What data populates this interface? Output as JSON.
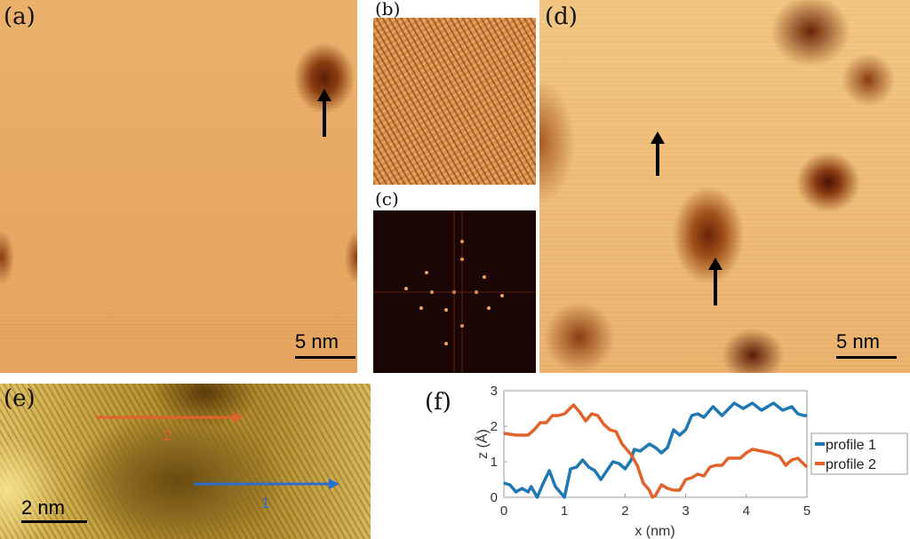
{
  "panels": {
    "a": {
      "label": "(a)",
      "scale_bar": "5 nm"
    },
    "b": {
      "label": "(b)"
    },
    "c": {
      "label": "(c)"
    },
    "d": {
      "label": "(d)",
      "scale_bar": "5 nm"
    },
    "e": {
      "label": "(e)",
      "scale_bar": "2 nm",
      "profile_arrow_labels": [
        "1",
        "2"
      ]
    },
    "f": {
      "label": "(f)"
    }
  },
  "colors": {
    "profile1": "#1f77b4",
    "profile2": "#e0622c",
    "arrow1": "#2a6ed0",
    "arrow2": "#e0622c"
  },
  "chart_data": {
    "type": "line",
    "xlabel": "x (nm)",
    "ylabel": "z (Å)",
    "xlim": [
      0,
      5
    ],
    "ylim": [
      0,
      3
    ],
    "xticks": [
      "0",
      "1",
      "2",
      "3",
      "4",
      "5"
    ],
    "yticks": [
      "0",
      "1",
      "2",
      "3"
    ],
    "legend": "right",
    "series": [
      {
        "name": "profile 1",
        "x": [
          0,
          0.1,
          0.2,
          0.3,
          0.4,
          0.45,
          0.55,
          0.65,
          0.75,
          0.85,
          1.0,
          1.1,
          1.2,
          1.3,
          1.4,
          1.5,
          1.6,
          1.7,
          1.8,
          1.9,
          2.0,
          2.1,
          2.15,
          2.25,
          2.4,
          2.5,
          2.6,
          2.7,
          2.8,
          2.9,
          3.0,
          3.1,
          3.2,
          3.3,
          3.45,
          3.6,
          3.8,
          3.95,
          4.1,
          4.25,
          4.45,
          4.6,
          4.75,
          4.85,
          4.95,
          5.0
        ],
        "y": [
          0.4,
          0.35,
          0.15,
          0.25,
          0.15,
          0.3,
          0.0,
          0.4,
          0.75,
          0.3,
          0.0,
          0.8,
          0.85,
          1.05,
          0.85,
          0.75,
          0.5,
          0.75,
          1.0,
          0.95,
          0.8,
          1.05,
          1.35,
          1.3,
          1.5,
          1.4,
          1.25,
          1.4,
          1.9,
          1.75,
          1.9,
          2.3,
          2.35,
          2.25,
          2.55,
          2.3,
          2.65,
          2.5,
          2.65,
          2.45,
          2.65,
          2.45,
          2.55,
          2.35,
          2.3,
          2.3
        ]
      },
      {
        "name": "profile 2",
        "x": [
          0,
          0.2,
          0.4,
          0.5,
          0.6,
          0.7,
          0.8,
          0.9,
          1.0,
          1.15,
          1.25,
          1.35,
          1.45,
          1.55,
          1.65,
          1.75,
          1.85,
          1.95,
          2.1,
          2.2,
          2.3,
          2.4,
          2.45,
          2.5,
          2.6,
          2.7,
          2.8,
          2.9,
          3.0,
          3.1,
          3.2,
          3.3,
          3.4,
          3.5,
          3.6,
          3.7,
          3.8,
          3.9,
          4.0,
          4.1,
          4.25,
          4.4,
          4.55,
          4.65,
          4.75,
          4.85,
          5.0
        ],
        "y": [
          1.8,
          1.75,
          1.75,
          1.9,
          2.1,
          2.1,
          2.3,
          2.3,
          2.35,
          2.6,
          2.4,
          2.15,
          2.35,
          2.3,
          2.05,
          1.9,
          1.85,
          1.5,
          1.2,
          0.9,
          0.4,
          0.2,
          0.0,
          0.05,
          0.35,
          0.25,
          0.2,
          0.2,
          0.5,
          0.55,
          0.65,
          0.6,
          0.85,
          0.9,
          0.9,
          1.1,
          1.1,
          1.1,
          1.25,
          1.35,
          1.3,
          1.25,
          1.15,
          0.9,
          1.05,
          1.1,
          0.85
        ]
      }
    ]
  }
}
